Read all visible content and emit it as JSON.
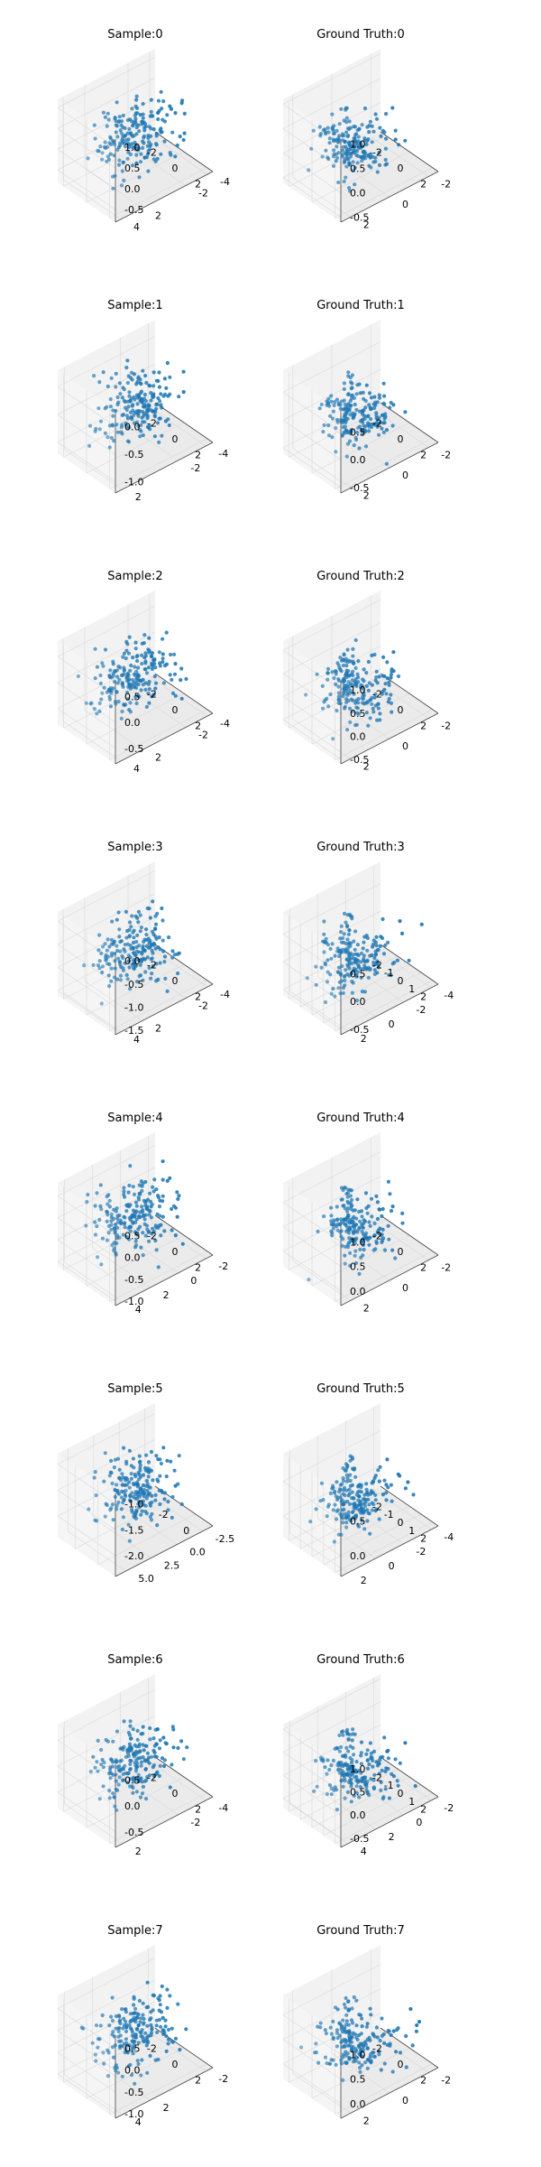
{
  "chart_data": [
    {
      "type": "scatter",
      "title": "Sample:0",
      "series_color": "#1f77b4",
      "n_points": 200,
      "seed": 101,
      "xlim": [
        -2.5,
        2.5
      ],
      "ylim": [
        -4.5,
        4.5
      ],
      "zlim": [
        -0.8,
        1.2
      ],
      "x_ticks": [
        "-2",
        "0",
        "2"
      ],
      "y_ticks": [
        "-4",
        "-2",
        "2",
        "4"
      ],
      "z_ticks": [
        "-0.5",
        "0.0",
        "0.5",
        "1.0"
      ]
    },
    {
      "type": "scatter",
      "title": "Ground Truth:0",
      "series_color": "#1f77b4",
      "n_points": 200,
      "seed": 102,
      "xlim": [
        -2.5,
        2.5
      ],
      "ylim": [
        -2.5,
        2.5
      ],
      "zlim": [
        -0.6,
        1.1
      ],
      "x_ticks": [
        "-2",
        "0",
        "2"
      ],
      "y_ticks": [
        "-2",
        "0",
        "2"
      ],
      "z_ticks": [
        "-0.5",
        "0.0",
        "0.5",
        "1.0"
      ]
    },
    {
      "type": "scatter",
      "title": "Sample:1",
      "series_color": "#1f77b4",
      "n_points": 200,
      "seed": 103,
      "xlim": [
        -2.5,
        2.5
      ],
      "ylim": [
        -4.5,
        2.5
      ],
      "zlim": [
        -1.2,
        0.3
      ],
      "x_ticks": [
        "-2",
        "0",
        "2"
      ],
      "y_ticks": [
        "-4",
        "-2",
        "2"
      ],
      "z_ticks": [
        "-1.0",
        "-0.5",
        "0.0"
      ]
    },
    {
      "type": "scatter",
      "title": "Ground Truth:1",
      "series_color": "#1f77b4",
      "n_points": 200,
      "seed": 104,
      "xlim": [
        -2.5,
        2.5
      ],
      "ylim": [
        -2.5,
        2.5
      ],
      "zlim": [
        -0.6,
        0.9
      ],
      "x_ticks": [
        "-2",
        "0",
        "2"
      ],
      "y_ticks": [
        "-2",
        "0",
        "2"
      ],
      "z_ticks": [
        "-0.5",
        "0.0",
        "0.5"
      ]
    },
    {
      "type": "scatter",
      "title": "Sample:2",
      "series_color": "#1f77b4",
      "n_points": 200,
      "seed": 105,
      "xlim": [
        -2.5,
        2.5
      ],
      "ylim": [
        -4.5,
        4.5
      ],
      "zlim": [
        -0.8,
        0.8
      ],
      "x_ticks": [
        "-2",
        "0",
        "2"
      ],
      "y_ticks": [
        "-4",
        "-2",
        "2",
        "4"
      ],
      "z_ticks": [
        "-0.5",
        "0.0",
        "0.5"
      ]
    },
    {
      "type": "scatter",
      "title": "Ground Truth:2",
      "series_color": "#1f77b4",
      "n_points": 200,
      "seed": 106,
      "xlim": [
        -2.5,
        2.5
      ],
      "ylim": [
        -2.5,
        2.5
      ],
      "zlim": [
        -0.6,
        1.2
      ],
      "x_ticks": [
        "-2",
        "0",
        "2"
      ],
      "y_ticks": [
        "-2",
        "0",
        "2"
      ],
      "z_ticks": [
        "-0.5",
        "0.0",
        "0.5",
        "1.0"
      ]
    },
    {
      "type": "scatter",
      "title": "Sample:3",
      "series_color": "#1f77b4",
      "n_points": 200,
      "seed": 107,
      "xlim": [
        -2.5,
        2.5
      ],
      "ylim": [
        -4.5,
        4.5
      ],
      "zlim": [
        -1.6,
        0.2
      ],
      "x_ticks": [
        "-2",
        "0",
        "2"
      ],
      "y_ticks": [
        "-4",
        "-2",
        "2",
        "4"
      ],
      "z_ticks": [
        "-1.5",
        "-1.0",
        "-0.5",
        "0.0"
      ]
    },
    {
      "type": "scatter",
      "title": "Ground Truth:3",
      "series_color": "#1f77b4",
      "n_points": 200,
      "seed": 108,
      "xlim": [
        -2.5,
        2.5
      ],
      "ylim": [
        -4.5,
        2.5
      ],
      "zlim": [
        -0.6,
        0.9
      ],
      "x_ticks": [
        "-2",
        "-1",
        "0",
        "1",
        "2"
      ],
      "y_ticks": [
        "-4",
        "-2",
        "0",
        "2"
      ],
      "z_ticks": [
        "-0.5",
        "0.0",
        "0.5"
      ]
    },
    {
      "type": "scatter",
      "title": "Sample:4",
      "series_color": "#1f77b4",
      "n_points": 200,
      "seed": 109,
      "xlim": [
        -2.5,
        2.5
      ],
      "ylim": [
        -2.5,
        4.5
      ],
      "zlim": [
        -1.1,
        0.8
      ],
      "x_ticks": [
        "-2",
        "0",
        "2"
      ],
      "y_ticks": [
        "-2",
        "0",
        "2",
        "4"
      ],
      "z_ticks": [
        "-1.0",
        "-0.5",
        "0.0",
        "0.5"
      ]
    },
    {
      "type": "scatter",
      "title": "Ground Truth:4",
      "series_color": "#1f77b4",
      "n_points": 200,
      "seed": 110,
      "xlim": [
        -2.5,
        2.5
      ],
      "ylim": [
        -2.5,
        2.5
      ],
      "zlim": [
        -0.3,
        1.4
      ],
      "x_ticks": [
        "-2",
        "0",
        "2"
      ],
      "y_ticks": [
        "-2",
        "0",
        "2"
      ],
      "z_ticks": [
        "0.0",
        "0.5",
        "1.0"
      ]
    },
    {
      "type": "scatter",
      "title": "Sample:5",
      "series_color": "#1f77b4",
      "n_points": 200,
      "seed": 111,
      "xlim": [
        -3.5,
        1.5
      ],
      "ylim": [
        -3.5,
        6
      ],
      "zlim": [
        -2.4,
        -0.8
      ],
      "x_ticks": [
        "-2",
        "0"
      ],
      "y_ticks": [
        "-2.5",
        "0.0",
        "2.5",
        "5.0"
      ],
      "z_ticks": [
        "-2.0",
        "-1.5",
        "-1.0"
      ]
    },
    {
      "type": "scatter",
      "title": "Ground Truth:5",
      "series_color": "#1f77b4",
      "n_points": 200,
      "seed": 112,
      "xlim": [
        -2.5,
        2.5
      ],
      "ylim": [
        -4.5,
        2.5
      ],
      "zlim": [
        -0.3,
        0.9
      ],
      "x_ticks": [
        "-2",
        "-1",
        "0",
        "1",
        "2"
      ],
      "y_ticks": [
        "-4",
        "-2",
        "0",
        "2"
      ],
      "z_ticks": [
        "0.0",
        "0.5"
      ]
    },
    {
      "type": "scatter",
      "title": "Sample:6",
      "series_color": "#1f77b4",
      "n_points": 200,
      "seed": 113,
      "xlim": [
        -2.5,
        2.5
      ],
      "ylim": [
        -4.5,
        2.5
      ],
      "zlim": [
        -0.8,
        0.8
      ],
      "x_ticks": [
        "-2",
        "0",
        "2"
      ],
      "y_ticks": [
        "-4",
        "-2",
        "2"
      ],
      "z_ticks": [
        "-0.5",
        "0.0",
        "0.5"
      ]
    },
    {
      "type": "scatter",
      "title": "Ground Truth:6",
      "series_color": "#1f77b4",
      "n_points": 200,
      "seed": 114,
      "xlim": [
        -2.5,
        2.5
      ],
      "ylim": [
        -2.5,
        4.5
      ],
      "zlim": [
        -0.7,
        1.1
      ],
      "x_ticks": [
        "-2",
        "-1",
        "0",
        "1",
        "2"
      ],
      "y_ticks": [
        "-2",
        "0",
        "2",
        "4"
      ],
      "z_ticks": [
        "-0.5",
        "0.0",
        "0.5",
        "1.0"
      ]
    },
    {
      "type": "scatter",
      "title": "Sample:7",
      "series_color": "#1f77b4",
      "n_points": 200,
      "seed": 115,
      "xlim": [
        -2.5,
        2.5
      ],
      "ylim": [
        -2.5,
        4.5
      ],
      "zlim": [
        -1.1,
        0.8
      ],
      "x_ticks": [
        "-2",
        "0",
        "2"
      ],
      "y_ticks": [
        "-2",
        "2",
        "4"
      ],
      "z_ticks": [
        "-1.0",
        "-0.5",
        "0.0",
        "0.5"
      ]
    },
    {
      "type": "scatter",
      "title": "Ground Truth:7",
      "series_color": "#1f77b4",
      "n_points": 200,
      "seed": 116,
      "xlim": [
        -2.5,
        2.5
      ],
      "ylim": [
        -2.5,
        2.5
      ],
      "zlim": [
        -0.3,
        1.4
      ],
      "x_ticks": [
        "-2",
        "0",
        "2"
      ],
      "y_ticks": [
        "-2",
        "0",
        "2"
      ],
      "z_ticks": [
        "0.0",
        "0.5",
        "1.0"
      ]
    }
  ]
}
